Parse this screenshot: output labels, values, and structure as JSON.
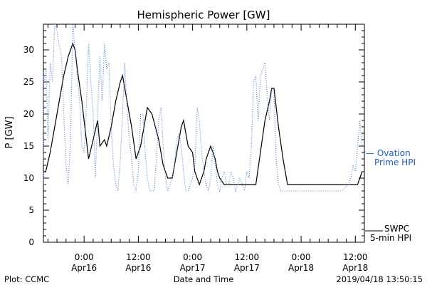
{
  "chart_data": {
    "type": "line",
    "title": "Hemispheric Power [GW]",
    "xlabel": "Date and Time",
    "ylabel": "P [GW]",
    "ylim": [
      0,
      34
    ],
    "yticks": [
      0,
      5,
      10,
      15,
      20,
      25,
      30
    ],
    "x_range_hours": [
      -9,
      36.5
    ],
    "x_ticks": [
      {
        "hour": 0,
        "time": "0:00",
        "date": "Apr16"
      },
      {
        "hour": 12,
        "time": "12:00",
        "date": "Apr16"
      },
      {
        "hour": 24,
        "time": "0:00",
        "date": "Apr17"
      },
      {
        "hour": 36,
        "time": "12:00",
        "date": "Apr17"
      },
      {
        "hour": 48,
        "time": "0:00",
        "date": "Apr18"
      },
      {
        "hour": 60,
        "time": "12:00",
        "date": "Apr18"
      }
    ],
    "series": [
      {
        "name": "SWPC 5-min HPI",
        "legend_line1": "SWPC",
        "legend_line2": "5-min HPI",
        "color": "#000000",
        "style": "solid",
        "points": [
          [
            -10.0,
            11
          ],
          [
            -9.5,
            12
          ],
          [
            -9.0,
            11
          ],
          [
            -8.5,
            11
          ],
          [
            -7.5,
            14
          ],
          [
            -6.5,
            18
          ],
          [
            -5.5,
            22
          ],
          [
            -4.5,
            26
          ],
          [
            -3.5,
            29
          ],
          [
            -2.5,
            31
          ],
          [
            -2.0,
            30
          ],
          [
            -1.5,
            27
          ],
          [
            -0.5,
            22
          ],
          [
            0.5,
            16
          ],
          [
            1.0,
            13
          ],
          [
            2.0,
            16
          ],
          [
            3.0,
            19
          ],
          [
            3.5,
            15
          ],
          [
            4.5,
            16
          ],
          [
            5.0,
            15
          ],
          [
            6.0,
            18
          ],
          [
            7.0,
            22
          ],
          [
            8.0,
            25
          ],
          [
            8.5,
            26
          ],
          [
            9.5,
            22
          ],
          [
            10.5,
            18
          ],
          [
            11.5,
            13
          ],
          [
            12.5,
            15
          ],
          [
            13.5,
            19
          ],
          [
            14.0,
            21
          ],
          [
            15.0,
            20
          ],
          [
            16.5,
            16
          ],
          [
            17.5,
            12
          ],
          [
            18.5,
            10
          ],
          [
            19.5,
            10
          ],
          [
            20.5,
            14
          ],
          [
            21.5,
            18
          ],
          [
            22.0,
            19
          ],
          [
            23.0,
            15
          ],
          [
            24.0,
            14
          ],
          [
            24.5,
            11
          ],
          [
            25.5,
            9
          ],
          [
            26.5,
            11
          ],
          [
            27.0,
            13
          ],
          [
            28.0,
            15
          ],
          [
            29.0,
            13
          ],
          [
            29.5,
            11
          ],
          [
            30.0,
            10
          ],
          [
            31.0,
            9
          ],
          [
            33.0,
            9
          ],
          [
            35.0,
            9
          ],
          [
            37.0,
            9
          ],
          [
            38.0,
            9
          ],
          [
            39.0,
            14
          ],
          [
            40.0,
            19
          ],
          [
            41.0,
            22
          ],
          [
            41.5,
            24
          ],
          [
            42.0,
            24
          ],
          [
            43.0,
            18
          ],
          [
            44.0,
            13
          ],
          [
            45.0,
            9
          ],
          [
            47.0,
            9
          ],
          [
            49.0,
            9
          ],
          [
            51.0,
            9
          ],
          [
            53.0,
            9
          ],
          [
            55.0,
            9
          ],
          [
            57.0,
            9
          ],
          [
            59.0,
            9
          ],
          [
            60.5,
            9
          ],
          [
            61.0,
            10
          ],
          [
            61.5,
            11
          ]
        ]
      },
      {
        "name": "Ovation Prime HPI",
        "legend_line1": "— Ovation",
        "legend_line2": "Prime HPI",
        "color": "#4a7fd0",
        "style": "dotted",
        "points": [
          [
            -10.0,
            9
          ],
          [
            -9.6,
            10
          ],
          [
            -9.2,
            26
          ],
          [
            -8.8,
            25
          ],
          [
            -8.4,
            27
          ],
          [
            -8.0,
            16
          ],
          [
            -7.5,
            28
          ],
          [
            -7.0,
            25
          ],
          [
            -6.5,
            34
          ],
          [
            -6.0,
            33
          ],
          [
            -5.6,
            31
          ],
          [
            -5.0,
            29
          ],
          [
            -4.5,
            20
          ],
          [
            -4.0,
            12
          ],
          [
            -3.5,
            9
          ],
          [
            -3.0,
            16
          ],
          [
            -2.5,
            34
          ],
          [
            -2.0,
            30
          ],
          [
            -1.5,
            26
          ],
          [
            -1.0,
            22
          ],
          [
            -0.5,
            15
          ],
          [
            0.0,
            14
          ],
          [
            0.5,
            21
          ],
          [
            1.0,
            31
          ],
          [
            1.5,
            25
          ],
          [
            2.0,
            20
          ],
          [
            2.5,
            10
          ],
          [
            3.0,
            20
          ],
          [
            3.5,
            29
          ],
          [
            4.0,
            22
          ],
          [
            4.5,
            31
          ],
          [
            5.0,
            27
          ],
          [
            5.5,
            28
          ],
          [
            6.0,
            18
          ],
          [
            6.5,
            12
          ],
          [
            7.0,
            9
          ],
          [
            7.5,
            8
          ],
          [
            8.0,
            13
          ],
          [
            8.5,
            20
          ],
          [
            9.0,
            28
          ],
          [
            9.5,
            21
          ],
          [
            10.0,
            16
          ],
          [
            10.5,
            13
          ],
          [
            11.0,
            9
          ],
          [
            11.5,
            8
          ],
          [
            12.0,
            11
          ],
          [
            12.5,
            20
          ],
          [
            13.0,
            20
          ],
          [
            13.5,
            14
          ],
          [
            14.0,
            10
          ],
          [
            14.5,
            8
          ],
          [
            15.0,
            8
          ],
          [
            15.5,
            8
          ],
          [
            16.0,
            13
          ],
          [
            16.5,
            19
          ],
          [
            17.0,
            21
          ],
          [
            17.5,
            15
          ],
          [
            18.0,
            10
          ],
          [
            18.5,
            8
          ],
          [
            19.0,
            9
          ],
          [
            19.5,
            10
          ],
          [
            20.0,
            12
          ],
          [
            20.5,
            16
          ],
          [
            21.0,
            17
          ],
          [
            21.5,
            15
          ],
          [
            22.0,
            11
          ],
          [
            22.5,
            8
          ],
          [
            23.0,
            8
          ],
          [
            23.5,
            9
          ],
          [
            24.0,
            10
          ],
          [
            24.5,
            12
          ],
          [
            25.0,
            21
          ],
          [
            25.5,
            19
          ],
          [
            26.0,
            14
          ],
          [
            26.5,
            11
          ],
          [
            27.0,
            9
          ],
          [
            27.5,
            8
          ],
          [
            28.0,
            10
          ],
          [
            28.5,
            15
          ],
          [
            29.0,
            12
          ],
          [
            29.5,
            9
          ],
          [
            30.0,
            8
          ],
          [
            30.5,
            10
          ],
          [
            31.0,
            11
          ],
          [
            31.5,
            9
          ],
          [
            32.0,
            9
          ],
          [
            32.5,
            11
          ],
          [
            33.0,
            10
          ],
          [
            33.5,
            8
          ],
          [
            34.0,
            9
          ],
          [
            34.5,
            10
          ],
          [
            35.0,
            9
          ],
          [
            35.5,
            8
          ],
          [
            36.0,
            11
          ],
          [
            36.5,
            10
          ],
          [
            37.0,
            15
          ],
          [
            37.5,
            25
          ],
          [
            38.0,
            26
          ],
          [
            38.5,
            19
          ],
          [
            39.0,
            26
          ],
          [
            39.5,
            27
          ],
          [
            40.0,
            28
          ],
          [
            40.5,
            23
          ],
          [
            41.0,
            19
          ],
          [
            41.5,
            24
          ],
          [
            42.0,
            23
          ],
          [
            42.5,
            13
          ],
          [
            43.0,
            9
          ],
          [
            43.5,
            8
          ],
          [
            45.0,
            8
          ],
          [
            47.0,
            8
          ],
          [
            49.0,
            8
          ],
          [
            51.0,
            8
          ],
          [
            53.0,
            8
          ],
          [
            55.0,
            8
          ],
          [
            57.0,
            8
          ],
          [
            58.5,
            9
          ],
          [
            59.0,
            10
          ],
          [
            59.5,
            12
          ],
          [
            60.0,
            11
          ],
          [
            60.5,
            15
          ],
          [
            61.0,
            19
          ],
          [
            61.5,
            15
          ]
        ]
      }
    ]
  },
  "footer": {
    "left": "Plot: CCMC",
    "center": "Date and Time",
    "right": "2019/04/18  13:50:15"
  }
}
